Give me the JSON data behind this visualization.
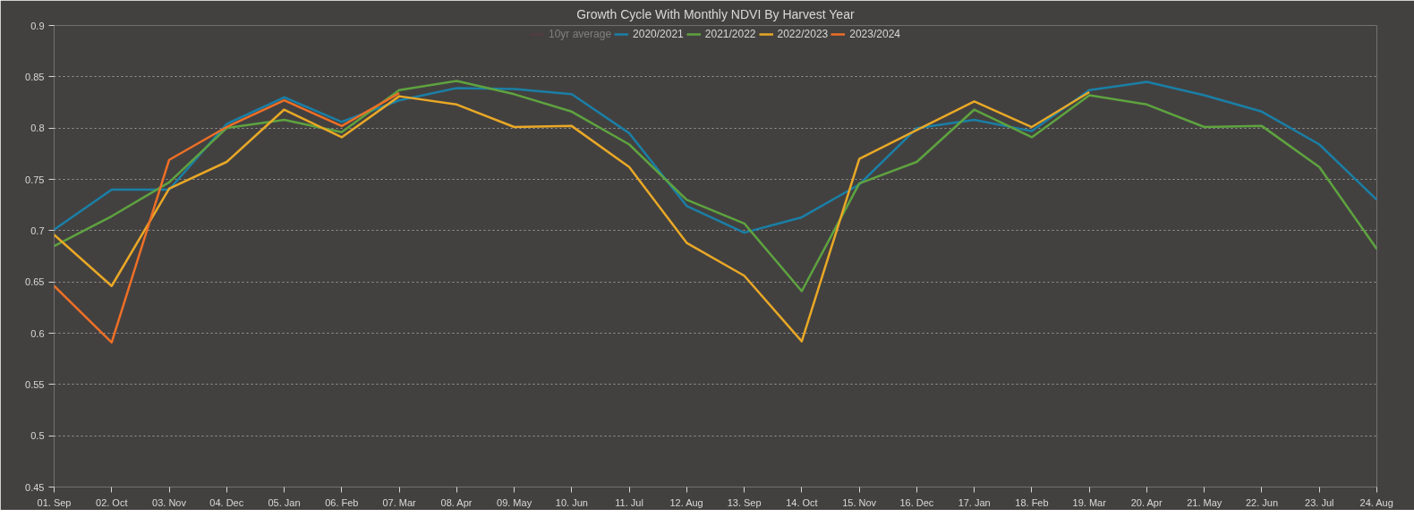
{
  "chart_data": {
    "type": "line",
    "title": "Growth Cycle With Monthly NDVI By Harvest Year",
    "categories": [
      "01. Sep",
      "02. Oct",
      "03. Nov",
      "04. Dec",
      "05. Jan",
      "06. Feb",
      "07. Mar",
      "08. Apr",
      "09. May",
      "10. Jun",
      "11. Jul",
      "12. Aug",
      "13. Sep",
      "14. Oct",
      "15. Nov",
      "16. Dec",
      "17. Jan",
      "18. Feb",
      "19. Mar",
      "20. Apr",
      "21. May",
      "22. Jun",
      "23. Jul",
      "24. Aug"
    ],
    "series": [
      {
        "name": "10yr average",
        "color": "#6b3344",
        "values": [
          null,
          null,
          null,
          null,
          null,
          null,
          null,
          null,
          null,
          null,
          null,
          null,
          null,
          null,
          null,
          null,
          null,
          null,
          null,
          null,
          null,
          null,
          null,
          null
        ]
      },
      {
        "name": "2020/2021",
        "color": "#1a7fa6",
        "values": [
          0.701,
          0.74,
          0.74,
          0.804,
          0.83,
          0.806,
          0.827,
          0.839,
          0.838,
          0.833,
          0.795,
          0.724,
          0.698,
          0.713,
          0.745,
          0.8,
          0.808,
          0.797,
          0.837,
          0.845,
          0.832,
          0.816,
          0.784,
          0.73
        ]
      },
      {
        "name": "2021/2022",
        "color": "#5ea33f",
        "values": [
          0.685,
          0.714,
          0.747,
          0.8,
          0.808,
          0.796,
          0.837,
          0.846,
          0.833,
          0.816,
          0.784,
          0.73,
          0.707,
          0.641,
          0.746,
          0.767,
          0.818,
          0.791,
          0.832,
          0.823,
          0.801,
          0.802,
          0.762,
          0.682
        ]
      },
      {
        "name": "2022/2023",
        "color": "#e9a826",
        "values": [
          0.696,
          0.646,
          0.741,
          0.767,
          0.818,
          0.791,
          0.831,
          0.823,
          0.801,
          0.802,
          0.762,
          0.688,
          0.656,
          0.592,
          0.77,
          0.798,
          0.826,
          0.801,
          0.835,
          null,
          null,
          null,
          null,
          null
        ]
      },
      {
        "name": "2023/2024",
        "color": "#ee6f26",
        "values": [
          0.646,
          0.591,
          0.769,
          0.801,
          0.827,
          0.802,
          0.834,
          null,
          null,
          null,
          null,
          null,
          null,
          null,
          null,
          null,
          null,
          null,
          null,
          null,
          null,
          null,
          null,
          null
        ]
      }
    ],
    "ylim": [
      0.45,
      0.9
    ],
    "yticks": [
      0.45,
      0.5,
      0.55,
      0.6,
      0.65,
      0.7,
      0.75,
      0.8,
      0.85,
      0.9
    ],
    "grid": "y",
    "legend": "top",
    "marker": "none",
    "line_style": "solid"
  }
}
